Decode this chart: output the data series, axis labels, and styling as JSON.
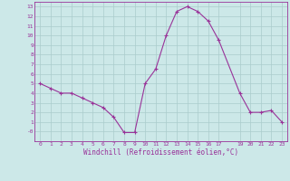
{
  "x": [
    0,
    1,
    2,
    3,
    4,
    5,
    6,
    7,
    8,
    9,
    10,
    11,
    12,
    13,
    14,
    15,
    16,
    17,
    19,
    20,
    21,
    22,
    23
  ],
  "y": [
    5.0,
    4.5,
    4.0,
    4.0,
    3.5,
    3.0,
    2.5,
    1.5,
    -0.1,
    -0.1,
    5.0,
    6.5,
    10.0,
    12.5,
    13.0,
    12.5,
    11.5,
    9.5,
    4.0,
    2.0,
    2.0,
    2.2,
    1.0
  ],
  "line_color": "#993399",
  "marker": "+",
  "marker_size": 3,
  "marker_linewidth": 0.8,
  "bg_color": "#cce8e8",
  "grid_color": "#aacccc",
  "axis_color": "#993399",
  "xlabel": "Windchill (Refroidissement éolien,°C)",
  "xlim": [
    -0.5,
    23.5
  ],
  "ylim": [
    -1.0,
    13.5
  ],
  "yticks": [
    0,
    1,
    2,
    3,
    4,
    5,
    6,
    7,
    8,
    9,
    10,
    11,
    12,
    13
  ],
  "ytick_labels": [
    "-0",
    "1",
    "2",
    "3",
    "4",
    "5",
    "6",
    "7",
    "8",
    "9",
    "10",
    "11",
    "12",
    "13"
  ],
  "xticks": [
    0,
    1,
    2,
    3,
    4,
    5,
    6,
    7,
    8,
    9,
    10,
    11,
    12,
    13,
    14,
    15,
    16,
    17,
    19,
    20,
    21,
    22,
    23
  ],
  "tick_fontsize": 4.5,
  "xlabel_fontsize": 5.5,
  "line_width": 0.8
}
